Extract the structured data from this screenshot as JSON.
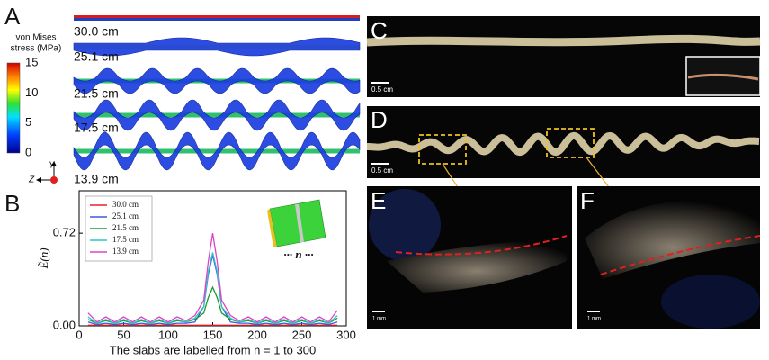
{
  "panels": {
    "a": {
      "label": "A",
      "colorbar_title": [
        "von Mises",
        "stress (MPa)"
      ],
      "colorbar_ticks": [
        15,
        10,
        5,
        0
      ],
      "lengths": [
        "30.0 cm",
        "25.1 cm",
        "21.5 cm",
        "17.5 cm",
        "13.9 cm"
      ],
      "axis_y": "Y",
      "axis_z": "Z"
    },
    "c": {
      "label": "C",
      "scale": "0.5 cm"
    },
    "d": {
      "label": "D",
      "scale": "0.5 cm"
    },
    "e": {
      "label": "E",
      "scale": "1 mm"
    },
    "f": {
      "label": "F",
      "scale": "1 mm"
    }
  },
  "chart_data": {
    "type": "line",
    "label": "B",
    "ylabel": "Ẽ(n)",
    "xlabel": "The slabs are labelled from n = 1 to 300",
    "inset_label": "··· n ···",
    "x": [
      10,
      20,
      30,
      40,
      50,
      60,
      70,
      80,
      90,
      100,
      110,
      120,
      130,
      140,
      145,
      150,
      155,
      160,
      170,
      180,
      190,
      200,
      210,
      220,
      230,
      240,
      250,
      260,
      270,
      280,
      290
    ],
    "xlim": [
      0,
      300
    ],
    "xticks": [
      0,
      50,
      100,
      150,
      200,
      250,
      300
    ],
    "ylim": [
      0,
      1.05
    ],
    "yticks": [
      {
        "value": 0,
        "label": "0.00"
      },
      {
        "value": 0.72,
        "label": "0.72"
      }
    ],
    "series": [
      {
        "name": "30.0 cm",
        "color": "#e8202a",
        "values": [
          0.005,
          0.005,
          0.005,
          0.005,
          0.005,
          0.005,
          0.005,
          0.005,
          0.005,
          0.005,
          0.005,
          0.005,
          0.005,
          0.005,
          0.005,
          0.005,
          0.005,
          0.005,
          0.005,
          0.005,
          0.005,
          0.005,
          0.005,
          0.005,
          0.005,
          0.005,
          0.005,
          0.005,
          0.005,
          0.005,
          0.005
        ]
      },
      {
        "name": "25.1 cm",
        "color": "#3b5bdb",
        "values": [
          0.03,
          0.01,
          0.02,
          0.01,
          0.02,
          0.01,
          0.02,
          0.01,
          0.02,
          0.01,
          0.02,
          0.02,
          0.03,
          0.15,
          0.4,
          0.55,
          0.4,
          0.15,
          0.03,
          0.02,
          0.02,
          0.01,
          0.02,
          0.01,
          0.02,
          0.01,
          0.02,
          0.01,
          0.02,
          0.01,
          0.03
        ]
      },
      {
        "name": "21.5 cm",
        "color": "#1a9a2a",
        "values": [
          0.05,
          0.02,
          0.04,
          0.02,
          0.04,
          0.02,
          0.04,
          0.02,
          0.04,
          0.02,
          0.04,
          0.03,
          0.05,
          0.1,
          0.22,
          0.3,
          0.22,
          0.1,
          0.05,
          0.03,
          0.04,
          0.02,
          0.04,
          0.02,
          0.04,
          0.02,
          0.04,
          0.02,
          0.04,
          0.02,
          0.06
        ]
      },
      {
        "name": "17.5 cm",
        "color": "#2ec4c4",
        "values": [
          0.07,
          0.02,
          0.05,
          0.02,
          0.05,
          0.02,
          0.05,
          0.02,
          0.05,
          0.02,
          0.05,
          0.03,
          0.06,
          0.15,
          0.42,
          0.57,
          0.42,
          0.15,
          0.06,
          0.03,
          0.05,
          0.02,
          0.05,
          0.02,
          0.05,
          0.02,
          0.05,
          0.02,
          0.05,
          0.02,
          0.08
        ]
      },
      {
        "name": "13.9 cm",
        "color": "#e040c8",
        "values": [
          0.1,
          0.03,
          0.07,
          0.03,
          0.07,
          0.03,
          0.07,
          0.03,
          0.07,
          0.03,
          0.07,
          0.04,
          0.08,
          0.2,
          0.5,
          0.72,
          0.5,
          0.2,
          0.08,
          0.04,
          0.07,
          0.03,
          0.07,
          0.03,
          0.07,
          0.03,
          0.07,
          0.03,
          0.07,
          0.03,
          0.12
        ]
      }
    ]
  }
}
